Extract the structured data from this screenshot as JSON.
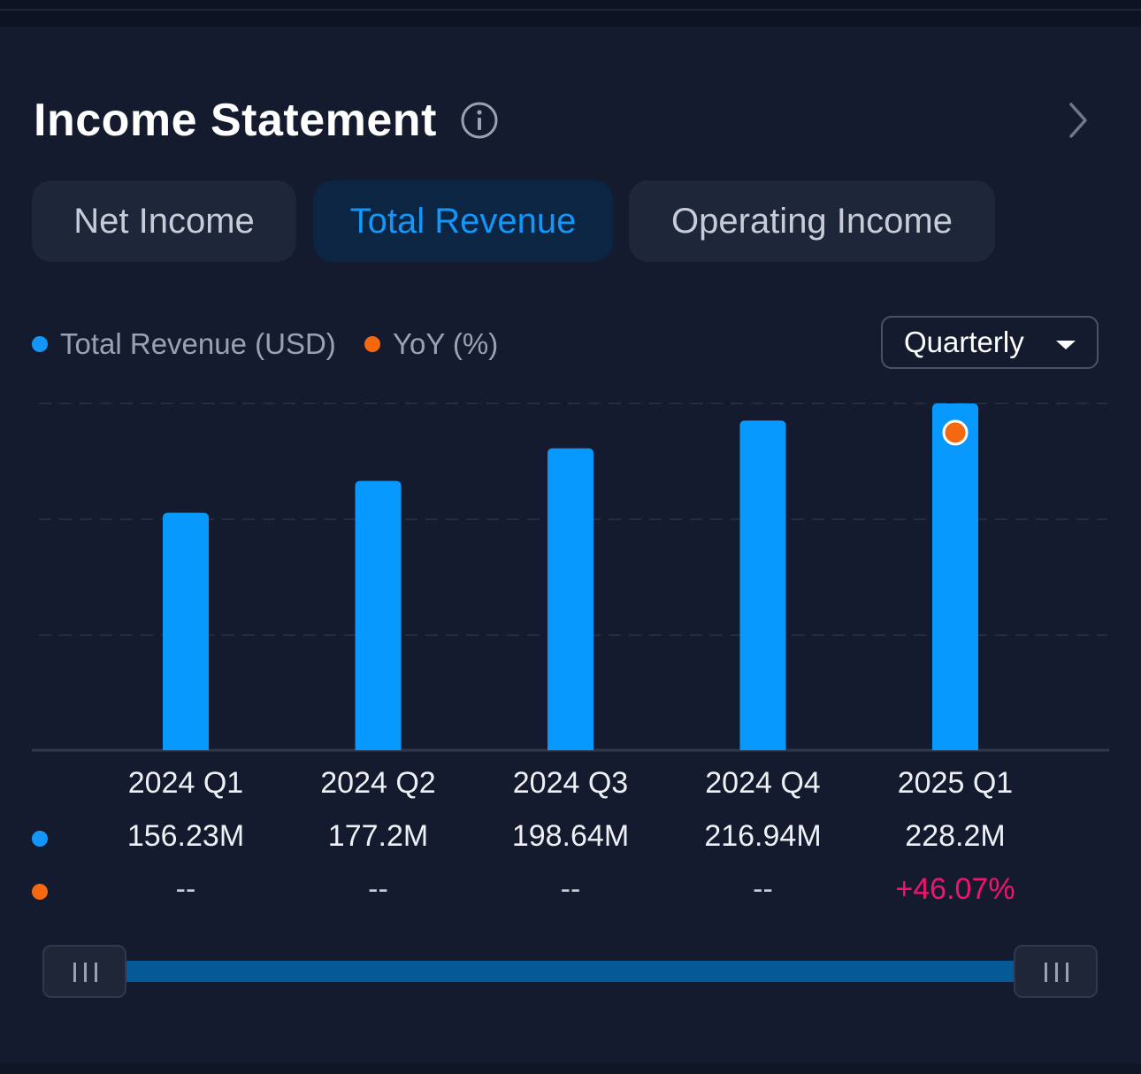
{
  "header": {
    "title": "Income Statement"
  },
  "tabs": [
    {
      "label": "Net Income",
      "active": false
    },
    {
      "label": "Total Revenue",
      "active": true
    },
    {
      "label": "Operating Income",
      "active": false
    }
  ],
  "legend": [
    {
      "label": "Total Revenue (USD)",
      "color": "#1396f8"
    },
    {
      "label": "YoY (%)",
      "color": "#f5680f"
    }
  ],
  "period_selector": {
    "value": "Quarterly"
  },
  "chart_data": {
    "type": "bar",
    "categories": [
      "2024 Q1",
      "2024 Q2",
      "2024 Q3",
      "2024 Q4",
      "2025 Q1"
    ],
    "series": [
      {
        "name": "Total Revenue (USD)",
        "values": [
          156.23,
          177.2,
          198.64,
          216.94,
          228.2
        ],
        "unit": "M",
        "color": "#0799fd"
      },
      {
        "name": "YoY (%)",
        "values": [
          null,
          null,
          null,
          null,
          46.07
        ],
        "color": "#f5680f"
      }
    ],
    "ylim": [
      0,
      228.2
    ],
    "grid": true,
    "legend": "top-left"
  },
  "table": {
    "revenue_labels": [
      "156.23M",
      "177.2M",
      "198.64M",
      "216.94M",
      "228.2M"
    ],
    "yoy_labels": [
      "--",
      "--",
      "--",
      "--",
      "+46.07%"
    ]
  },
  "icons": {
    "info": "info-circle-icon",
    "next": "chevron-right-icon",
    "caret": "caret-down-icon",
    "grip": "grip-lines-icon"
  }
}
